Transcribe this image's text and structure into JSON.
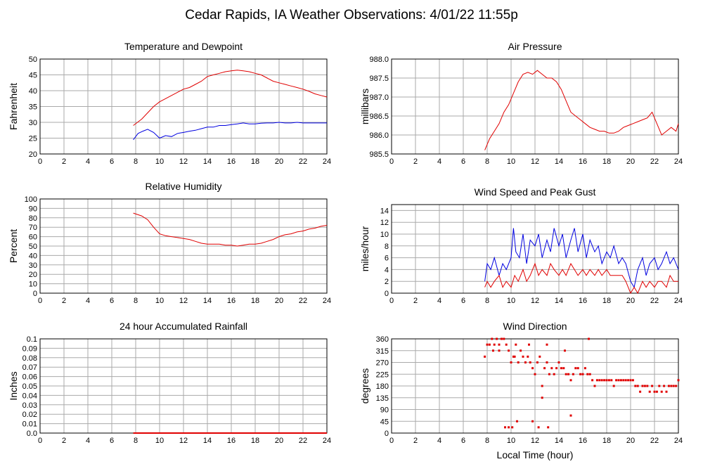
{
  "title": "Cedar Rapids, IA Weather Observations: 4/01/22 11:55p",
  "xlabel": "Local Time (hour)",
  "colors": {
    "red": "#e00000",
    "blue": "#0000e0",
    "grid": "#aaaaaa"
  },
  "chart_data": [
    {
      "type": "line",
      "title": "Temperature and Dewpoint",
      "ylabel": "Fahrenheit",
      "ylim": [
        20,
        50
      ],
      "yticks": [
        "20",
        "25",
        "30",
        "35",
        "40",
        "45",
        "50"
      ],
      "xlim": [
        0,
        24
      ],
      "xticks": [
        "0",
        "2",
        "4",
        "6",
        "8",
        "10",
        "12",
        "14",
        "16",
        "18",
        "20",
        "22",
        "24"
      ],
      "grid": true,
      "series": [
        {
          "color": "#e00000",
          "x": [
            7.8,
            8.5,
            9.0,
            9.5,
            10.0,
            10.5,
            11.0,
            11.5,
            12.0,
            12.5,
            13.0,
            13.5,
            14.0,
            14.5,
            15.0,
            15.5,
            16.0,
            16.5,
            17.0,
            17.5,
            18.0,
            18.5,
            19.0,
            19.5,
            20.0,
            20.5,
            21.0,
            21.5,
            22.0,
            22.5,
            23.0,
            23.5,
            24.0
          ],
          "y": [
            29,
            31,
            33,
            35,
            36.5,
            37.5,
            38.5,
            39.5,
            40.5,
            41,
            42,
            43,
            44.5,
            45,
            45.5,
            46,
            46.3,
            46.5,
            46.3,
            46,
            45.5,
            45,
            44,
            43,
            42.5,
            42,
            41.5,
            41,
            40.5,
            39.8,
            39,
            38.5,
            38
          ]
        },
        {
          "color": "#0000e0",
          "x": [
            7.8,
            8.2,
            8.6,
            9.0,
            9.5,
            10.0,
            10.5,
            11.0,
            11.5,
            12.0,
            12.5,
            13.0,
            13.5,
            14.0,
            14.5,
            15.0,
            15.5,
            16.0,
            16.5,
            17.0,
            17.5,
            18.0,
            18.5,
            19.0,
            19.5,
            20.0,
            20.5,
            21.0,
            21.5,
            22.0,
            22.5,
            23.0,
            23.5,
            24.0
          ],
          "y": [
            24.5,
            26.5,
            27.2,
            27.8,
            26.8,
            25,
            25.8,
            25.5,
            26.5,
            26.8,
            27.2,
            27.5,
            28,
            28.5,
            28.5,
            29,
            29,
            29.3,
            29.5,
            29.8,
            29.5,
            29.5,
            29.7,
            29.8,
            29.8,
            30,
            29.8,
            29.8,
            30,
            29.8,
            29.8,
            29.8,
            29.8,
            29.8
          ]
        }
      ]
    },
    {
      "type": "line",
      "title": "Air Pressure",
      "ylabel": "millibars",
      "ylim": [
        985.5,
        988.0
      ],
      "yticks": [
        "985.5",
        "986.0",
        "986.5",
        "987.0",
        "987.5",
        "988.0"
      ],
      "xlim": [
        0,
        24
      ],
      "xticks": [
        "0",
        "2",
        "4",
        "6",
        "8",
        "10",
        "12",
        "14",
        "16",
        "18",
        "20",
        "22",
        "24"
      ],
      "grid": true,
      "series": [
        {
          "color": "#e00000",
          "x": [
            7.8,
            8.2,
            8.6,
            9.0,
            9.4,
            9.8,
            10.2,
            10.6,
            11.0,
            11.4,
            11.8,
            12.2,
            12.6,
            13.0,
            13.4,
            13.8,
            14.2,
            14.6,
            15.0,
            15.4,
            15.8,
            16.2,
            16.6,
            17.0,
            17.4,
            17.8,
            18.2,
            18.6,
            19.0,
            19.4,
            19.8,
            20.2,
            20.6,
            21.0,
            21.4,
            21.8,
            22.2,
            22.6,
            23.0,
            23.4,
            23.8,
            24.0
          ],
          "y": [
            985.6,
            985.9,
            986.1,
            986.3,
            986.6,
            986.8,
            987.1,
            987.4,
            987.6,
            987.65,
            987.6,
            987.7,
            987.6,
            987.5,
            987.5,
            987.4,
            987.2,
            986.9,
            986.6,
            986.5,
            986.4,
            986.3,
            986.2,
            986.15,
            986.1,
            986.1,
            986.05,
            986.05,
            986.1,
            986.2,
            986.25,
            986.3,
            986.35,
            986.4,
            986.45,
            986.6,
            986.3,
            986.0,
            986.1,
            986.2,
            986.1,
            986.3
          ]
        }
      ]
    },
    {
      "type": "line",
      "title": "Relative Humidity",
      "ylabel": "Percent",
      "ylim": [
        0,
        100
      ],
      "yticks": [
        "0",
        "10",
        "20",
        "30",
        "40",
        "50",
        "60",
        "70",
        "80",
        "90",
        "100"
      ],
      "xlim": [
        0,
        24
      ],
      "xticks": [
        "0",
        "2",
        "4",
        "6",
        "8",
        "10",
        "12",
        "14",
        "16",
        "18",
        "20",
        "22",
        "24"
      ],
      "grid": true,
      "series": [
        {
          "color": "#e00000",
          "x": [
            7.8,
            8.5,
            9.0,
            9.5,
            10.0,
            10.5,
            11.0,
            11.5,
            12.0,
            12.5,
            13.0,
            13.5,
            14.0,
            14.5,
            15.0,
            15.5,
            16.0,
            16.5,
            17.0,
            17.5,
            18.0,
            18.5,
            19.0,
            19.5,
            20.0,
            20.5,
            21.0,
            21.5,
            22.0,
            22.5,
            23.0,
            23.5,
            24.0
          ],
          "y": [
            85,
            82,
            78,
            70,
            63,
            61,
            60,
            59,
            58,
            57,
            55,
            53,
            52,
            52,
            52,
            51,
            51,
            50,
            51,
            52,
            52,
            53,
            55,
            57,
            60,
            62,
            63,
            65,
            66,
            68,
            69,
            71,
            72
          ]
        }
      ]
    },
    {
      "type": "line",
      "title": "Wind Speed and Peak Gust",
      "ylabel": "miles/hour",
      "ylim": [
        0,
        15
      ],
      "yticks": [
        "0",
        "2",
        "4",
        "6",
        "8",
        "10",
        "12",
        "14"
      ],
      "xlim": [
        0,
        24
      ],
      "xticks": [
        "0",
        "2",
        "4",
        "6",
        "8",
        "10",
        "12",
        "14",
        "16",
        "18",
        "20",
        "22",
        "24"
      ],
      "grid": true,
      "series": [
        {
          "color": "#0000e0",
          "x": [
            7.8,
            8.0,
            8.3,
            8.6,
            9.0,
            9.3,
            9.6,
            10.0,
            10.2,
            10.4,
            10.7,
            11.0,
            11.3,
            11.6,
            12.0,
            12.3,
            12.6,
            13.0,
            13.3,
            13.6,
            14.0,
            14.3,
            14.6,
            15.0,
            15.3,
            15.6,
            16.0,
            16.3,
            16.6,
            17.0,
            17.3,
            17.6,
            18.0,
            18.3,
            18.6,
            19.0,
            19.3,
            19.6,
            20.0,
            20.3,
            20.6,
            21.0,
            21.3,
            21.6,
            22.0,
            22.3,
            22.6,
            23.0,
            23.3,
            23.6,
            24.0
          ],
          "y": [
            2,
            5,
            4,
            6,
            3,
            5,
            4,
            6,
            11,
            7,
            6,
            10,
            5,
            9,
            8,
            10,
            6,
            9,
            7,
            11,
            8,
            10,
            6,
            9,
            11,
            7,
            10,
            6,
            9,
            7,
            8,
            5,
            7,
            6,
            8,
            5,
            6,
            5,
            2,
            1,
            4,
            6,
            3,
            5,
            6,
            4,
            5,
            7,
            5,
            6,
            4
          ]
        },
        {
          "color": "#e00000",
          "x": [
            7.8,
            8.0,
            8.3,
            8.6,
            9.0,
            9.3,
            9.6,
            10.0,
            10.3,
            10.6,
            11.0,
            11.3,
            11.6,
            12.0,
            12.3,
            12.6,
            13.0,
            13.3,
            13.6,
            14.0,
            14.3,
            14.6,
            15.0,
            15.3,
            15.6,
            16.0,
            16.3,
            16.6,
            17.0,
            17.3,
            17.6,
            18.0,
            18.3,
            18.6,
            19.0,
            19.3,
            19.6,
            20.0,
            20.3,
            20.6,
            21.0,
            21.3,
            21.6,
            22.0,
            22.3,
            22.6,
            23.0,
            23.3,
            23.6,
            24.0
          ],
          "y": [
            1,
            2,
            1,
            2,
            3,
            1,
            2,
            1,
            3,
            2,
            4,
            2,
            3,
            5,
            3,
            4,
            3,
            5,
            4,
            3,
            4,
            3,
            5,
            4,
            3,
            4,
            3,
            4,
            3,
            4,
            3,
            4,
            3,
            3,
            3,
            3,
            2,
            0,
            1,
            0,
            2,
            1,
            2,
            1,
            2,
            2,
            1,
            3,
            2,
            2
          ]
        }
      ]
    },
    {
      "type": "bar",
      "title": "24 hour Accumulated Rainfall",
      "ylabel": "Inches",
      "ylim": [
        0,
        0.1
      ],
      "yticks": [
        "0.0",
        "0.01",
        "0.02",
        "0.03",
        "0.04",
        "0.05",
        "0.06",
        "0.07",
        "0.08",
        "0.09",
        "0.1"
      ],
      "xlim": [
        0,
        24
      ],
      "xticks": [
        "0",
        "2",
        "4",
        "6",
        "8",
        "10",
        "12",
        "14",
        "16",
        "18",
        "20",
        "22",
        "24"
      ],
      "grid": true,
      "series": [
        {
          "color": "#e00000",
          "x": [
            7.8,
            24.0
          ],
          "y": [
            0,
            0
          ]
        }
      ]
    },
    {
      "type": "scatter",
      "title": "Wind Direction",
      "ylabel": "degrees",
      "ylim": [
        0,
        360
      ],
      "yticks": [
        "0",
        "45",
        "90",
        "135",
        "180",
        "225",
        "270",
        "315",
        "360"
      ],
      "xlim": [
        0,
        24
      ],
      "xticks": [
        "0",
        "2",
        "4",
        "6",
        "8",
        "10",
        "12",
        "14",
        "16",
        "18",
        "20",
        "22",
        "24"
      ],
      "grid": true,
      "series": [
        {
          "color": "#e00000",
          "x": [
            7.8,
            8.0,
            8.2,
            8.4,
            8.6,
            8.8,
            9.0,
            9.2,
            9.4,
            9.6,
            9.8,
            10.0,
            10.2,
            10.4,
            10.6,
            10.8,
            11.0,
            11.2,
            11.4,
            11.6,
            11.8,
            12.0,
            12.2,
            12.4,
            12.6,
            12.8,
            13.0,
            13.2,
            13.4,
            13.6,
            13.8,
            14.0,
            14.2,
            14.4,
            14.6,
            14.8,
            15.0,
            15.2,
            15.4,
            15.6,
            15.8,
            16.0,
            16.2,
            16.4,
            16.6,
            16.8,
            17.0,
            17.2,
            17.4,
            17.6,
            17.8,
            18.0,
            18.2,
            18.4,
            18.6,
            18.8,
            19.0,
            19.2,
            19.4,
            19.6,
            19.8,
            20.0,
            20.2,
            20.4,
            20.6,
            20.8,
            21.0,
            21.2,
            21.4,
            21.6,
            21.8,
            22.0,
            22.2,
            22.4,
            22.6,
            22.8,
            23.0,
            23.2,
            23.4,
            23.6,
            23.8,
            24.0,
            9.5,
            9.8,
            10.1,
            10.5,
            11.8,
            12.3,
            13.1,
            15.0,
            12.6,
            8.5,
            9.0,
            10.3,
            11.5,
            13.0,
            14.5,
            16.5
          ],
          "y": [
            292,
            338,
            338,
            360,
            338,
            360,
            338,
            360,
            360,
            338,
            315,
            270,
            292,
            338,
            270,
            315,
            292,
            270,
            292,
            270,
            248,
            225,
            270,
            292,
            180,
            248,
            270,
            225,
            248,
            225,
            248,
            270,
            248,
            248,
            225,
            225,
            202,
            225,
            248,
            248,
            225,
            225,
            248,
            225,
            225,
            202,
            180,
            202,
            202,
            202,
            202,
            202,
            202,
            202,
            180,
            202,
            202,
            202,
            202,
            202,
            202,
            202,
            202,
            180,
            180,
            158,
            180,
            180,
            180,
            158,
            180,
            158,
            158,
            180,
            158,
            180,
            158,
            180,
            180,
            180,
            180,
            202,
            22,
            22,
            22,
            45,
            45,
            22,
            22,
            67,
            135,
            315,
            315,
            292,
            338,
            338,
            315,
            360
          ]
        }
      ]
    }
  ]
}
